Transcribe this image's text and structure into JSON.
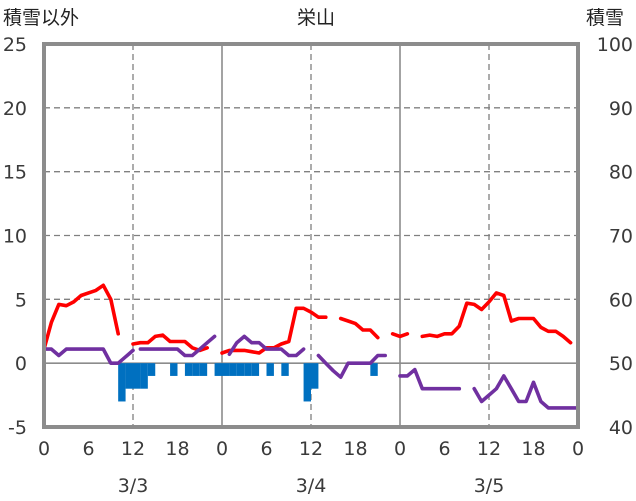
{
  "chart_data": {
    "type": "line",
    "title": "栄山",
    "left_axis_label": "積雪以外",
    "right_axis_label": "積雪",
    "ylim_left": [
      -5,
      25
    ],
    "ylim_right": [
      40,
      100
    ],
    "left_ticks": [
      "-5",
      "0",
      "5",
      "10",
      "15",
      "20",
      "25"
    ],
    "right_ticks": [
      "40",
      "50",
      "60",
      "70",
      "80",
      "90",
      "100"
    ],
    "x_ticks": [
      "0",
      "6",
      "12",
      "18",
      "0",
      "6",
      "12",
      "18",
      "0",
      "6",
      "12",
      "18",
      "0"
    ],
    "day_labels": [
      "3/3",
      "3/4",
      "3/5"
    ],
    "grid": "dashed",
    "series": [
      {
        "kind": "line",
        "color": "#ff0000",
        "points": [
          [
            0,
            1.1
          ],
          [
            1,
            3.2
          ],
          [
            2,
            4.6
          ],
          [
            3,
            4.5
          ],
          [
            4,
            4.8
          ],
          [
            5,
            5.3
          ],
          [
            6,
            5.5
          ],
          [
            7,
            5.7
          ],
          [
            8,
            6.1
          ],
          [
            9,
            5.0
          ],
          [
            10,
            2.3
          ],
          [
            null,
            null
          ],
          [
            12,
            1.5
          ],
          [
            13,
            1.6
          ],
          [
            14,
            1.6
          ],
          [
            15,
            2.1
          ],
          [
            16,
            2.2
          ],
          [
            17,
            1.7
          ],
          [
            18,
            1.7
          ],
          [
            19,
            1.7
          ],
          [
            20,
            1.2
          ],
          [
            21,
            1.0
          ],
          [
            22,
            1.2
          ],
          [
            null,
            null
          ],
          [
            24,
            0.8
          ],
          [
            25,
            1.0
          ],
          [
            26,
            1.0
          ],
          [
            27,
            1.0
          ],
          [
            28,
            0.9
          ],
          [
            29,
            0.8
          ],
          [
            30,
            1.2
          ],
          [
            31,
            1.2
          ],
          [
            32,
            1.5
          ],
          [
            33,
            1.7
          ],
          [
            34,
            4.3
          ],
          [
            35,
            4.3
          ],
          [
            36,
            4.0
          ],
          [
            37,
            3.6
          ],
          [
            38,
            3.6
          ],
          [
            null,
            null
          ],
          [
            40,
            3.5
          ],
          [
            41,
            3.3
          ],
          [
            42,
            3.1
          ],
          [
            43,
            2.6
          ],
          [
            44,
            2.6
          ],
          [
            45,
            2.0
          ],
          [
            null,
            null
          ],
          [
            47,
            2.3
          ],
          [
            48,
            2.1
          ],
          [
            49,
            2.3
          ],
          [
            null,
            null
          ],
          [
            51,
            2.1
          ],
          [
            52,
            2.2
          ],
          [
            53,
            2.1
          ],
          [
            54,
            2.3
          ],
          [
            55,
            2.3
          ],
          [
            56,
            2.9
          ],
          [
            57,
            4.7
          ],
          [
            58,
            4.6
          ],
          [
            59,
            4.2
          ],
          [
            60,
            4.8
          ],
          [
            61,
            5.5
          ],
          [
            62,
            5.3
          ],
          [
            63,
            3.3
          ],
          [
            64,
            3.5
          ],
          [
            65,
            3.5
          ],
          [
            66,
            3.5
          ],
          [
            67,
            2.8
          ],
          [
            68,
            2.5
          ],
          [
            69,
            2.5
          ],
          [
            70,
            2.1
          ],
          [
            71,
            1.6
          ]
        ]
      },
      {
        "kind": "line",
        "color": "#7030a0",
        "points": [
          [
            0,
            1.1
          ],
          [
            1,
            1.1
          ],
          [
            2,
            0.6
          ],
          [
            3,
            1.1
          ],
          [
            4,
            1.1
          ],
          [
            5,
            1.1
          ],
          [
            6,
            1.1
          ],
          [
            7,
            1.1
          ],
          [
            8,
            1.1
          ],
          [
            9,
            0.0
          ],
          [
            10,
            0.0
          ],
          [
            11,
            0.5
          ],
          [
            12,
            1.0
          ],
          [
            null,
            null
          ],
          [
            13,
            1.1
          ],
          [
            14,
            1.1
          ],
          [
            15,
            1.1
          ],
          [
            16,
            1.1
          ],
          [
            17,
            1.1
          ],
          [
            18,
            1.1
          ],
          [
            19,
            0.6
          ],
          [
            20,
            0.6
          ],
          [
            21,
            1.1
          ],
          [
            22,
            1.6
          ],
          [
            23,
            2.1
          ],
          [
            null,
            null
          ],
          [
            25,
            0.7
          ],
          [
            26,
            1.6
          ],
          [
            27,
            2.1
          ],
          [
            28,
            1.6
          ],
          [
            29,
            1.6
          ],
          [
            30,
            1.1
          ],
          [
            31,
            1.1
          ],
          [
            32,
            1.1
          ],
          [
            33,
            0.6
          ],
          [
            34,
            0.6
          ],
          [
            35,
            1.1
          ],
          [
            null,
            null
          ],
          [
            37,
            0.6
          ],
          [
            38,
            0.0
          ],
          [
            39,
            -0.6
          ],
          [
            40,
            -1.1
          ],
          [
            41,
            0.0
          ],
          [
            42,
            0.0
          ],
          [
            43,
            0.0
          ],
          [
            44,
            0.0
          ],
          [
            45,
            0.6
          ],
          [
            46,
            0.6
          ],
          [
            null,
            null
          ],
          [
            48,
            -1.0
          ],
          [
            49,
            -1.0
          ],
          [
            50,
            -0.5
          ],
          [
            51,
            -2.0
          ],
          [
            52,
            -2.0
          ],
          [
            53,
            -2.0
          ],
          [
            54,
            -2.0
          ],
          [
            55,
            -2.0
          ],
          [
            56,
            -2.0
          ],
          [
            null,
            null
          ],
          [
            58,
            -2.0
          ],
          [
            59,
            -3.0
          ],
          [
            60,
            -2.5
          ],
          [
            61,
            -2.0
          ],
          [
            62,
            -1.0
          ],
          [
            63,
            -2.0
          ],
          [
            64,
            -3.0
          ],
          [
            65,
            -3.0
          ],
          [
            66,
            -1.5
          ],
          [
            67,
            -3.0
          ],
          [
            68,
            -3.5
          ],
          [
            69,
            -3.5
          ],
          [
            70,
            -3.5
          ],
          [
            71,
            -3.5
          ],
          [
            72,
            -3.5
          ]
        ]
      }
    ],
    "bars": {
      "color": "#0070c0",
      "points": [
        [
          10.5,
          -3.0
        ],
        [
          11.5,
          -2.0
        ],
        [
          12.5,
          -2.0
        ],
        [
          13.5,
          -2.0
        ],
        [
          14.5,
          -1.0
        ],
        [
          17.5,
          -1.0
        ],
        [
          19.5,
          -1.0
        ],
        [
          20.5,
          -1.0
        ],
        [
          21.5,
          -1.0
        ],
        [
          23.5,
          -1.0
        ],
        [
          24.5,
          -1.0
        ],
        [
          25.5,
          -1.0
        ],
        [
          26.5,
          -1.0
        ],
        [
          27.5,
          -1.0
        ],
        [
          28.5,
          -1.0
        ],
        [
          30.5,
          -1.0
        ],
        [
          32.5,
          -1.0
        ],
        [
          35.5,
          -3.0
        ],
        [
          36.5,
          -2.0
        ],
        [
          44.5,
          -1.0
        ]
      ]
    }
  }
}
